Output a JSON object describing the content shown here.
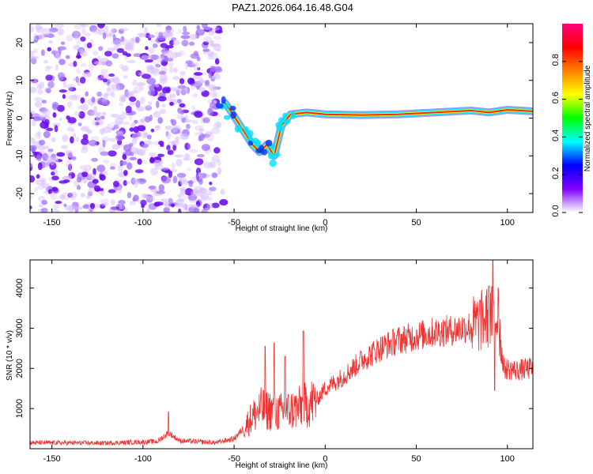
{
  "title": "PAZ1.2026.064.16.48.G04",
  "chart_data": [
    {
      "type": "heatmap",
      "name": "spectrogram",
      "xlabel": "Height of straight line (km)",
      "ylabel": "Frequency (Hz)",
      "xlim": [
        -162,
        114
      ],
      "ylim": [
        -25,
        25
      ],
      "xticks": [
        -150,
        -100,
        -50,
        0,
        50,
        100
      ],
      "yticks": [
        -20,
        -10,
        0,
        10,
        20
      ],
      "noise_region_km": [
        -162,
        -58
      ],
      "signal_ridge": [
        {
          "x": -55,
          "f": 4
        },
        {
          "x": -52,
          "f": 2
        },
        {
          "x": -48,
          "f": -1
        },
        {
          "x": -44,
          "f": -4
        },
        {
          "x": -40,
          "f": -7
        },
        {
          "x": -36,
          "f": -9
        },
        {
          "x": -32,
          "f": -7
        },
        {
          "x": -28,
          "f": -10
        },
        {
          "x": -24,
          "f": -2
        },
        {
          "x": -19,
          "f": 1
        },
        {
          "x": -10,
          "f": 1.5
        },
        {
          "x": 0,
          "f": 1
        },
        {
          "x": 20,
          "f": 0.8
        },
        {
          "x": 40,
          "f": 1
        },
        {
          "x": 60,
          "f": 1.5
        },
        {
          "x": 80,
          "f": 2
        },
        {
          "x": 90,
          "f": 1.5
        },
        {
          "x": 100,
          "f": 2.2
        },
        {
          "x": 114,
          "f": 1.8
        }
      ],
      "colorbar": {
        "label": "Normalized spectral amplitude",
        "ticks": [
          "0.0",
          "0.2",
          "0.4",
          "0.6",
          "0.8"
        ],
        "range": [
          0,
          1
        ],
        "colors": [
          "#ffffff",
          "#8000ff",
          "#0000ff",
          "#00ffff",
          "#00ff00",
          "#ffff00",
          "#ff8000",
          "#ff0000",
          "#ff0080"
        ]
      }
    },
    {
      "type": "line",
      "name": "snr",
      "xlabel": "Height of straight line (km)",
      "ylabel": "SNR (10 * v/v)",
      "xlim": [
        -162,
        114
      ],
      "ylim": [
        0,
        4700
      ],
      "xticks": [
        -150,
        -100,
        -50,
        0,
        50,
        100
      ],
      "yticks": [
        1000,
        2000,
        3000,
        4000
      ],
      "color": "#ee3333",
      "trend": [
        {
          "x": -162,
          "y": 150
        },
        {
          "x": -120,
          "y": 140
        },
        {
          "x": -92,
          "y": 180
        },
        {
          "x": -86,
          "y": 400
        },
        {
          "x": -80,
          "y": 200
        },
        {
          "x": -60,
          "y": 150
        },
        {
          "x": -50,
          "y": 250
        },
        {
          "x": -45,
          "y": 500
        },
        {
          "x": -40,
          "y": 800
        },
        {
          "x": -35,
          "y": 1000
        },
        {
          "x": -25,
          "y": 900
        },
        {
          "x": -15,
          "y": 1000
        },
        {
          "x": -5,
          "y": 1200
        },
        {
          "x": 0,
          "y": 1500
        },
        {
          "x": 10,
          "y": 1800
        },
        {
          "x": 20,
          "y": 2200
        },
        {
          "x": 30,
          "y": 2500
        },
        {
          "x": 40,
          "y": 2700
        },
        {
          "x": 50,
          "y": 2800
        },
        {
          "x": 60,
          "y": 2900
        },
        {
          "x": 70,
          "y": 2950
        },
        {
          "x": 80,
          "y": 3050
        },
        {
          "x": 85,
          "y": 3150
        },
        {
          "x": 90,
          "y": 3300
        },
        {
          "x": 95,
          "y": 3250
        },
        {
          "x": 98,
          "y": 2000
        },
        {
          "x": 105,
          "y": 1950
        },
        {
          "x": 114,
          "y": 2000
        }
      ],
      "spikes": [
        {
          "x": -86,
          "y": 920
        },
        {
          "x": -33,
          "y": 2550
        },
        {
          "x": -28,
          "y": 2630
        },
        {
          "x": -22,
          "y": 2300
        },
        {
          "x": -12,
          "y": 2930
        },
        {
          "x": 85,
          "y": 3700
        },
        {
          "x": 90,
          "y": 4050
        },
        {
          "x": 92,
          "y": 4700
        },
        {
          "x": 93,
          "y": 1450
        },
        {
          "x": 95,
          "y": 4000
        }
      ]
    }
  ]
}
